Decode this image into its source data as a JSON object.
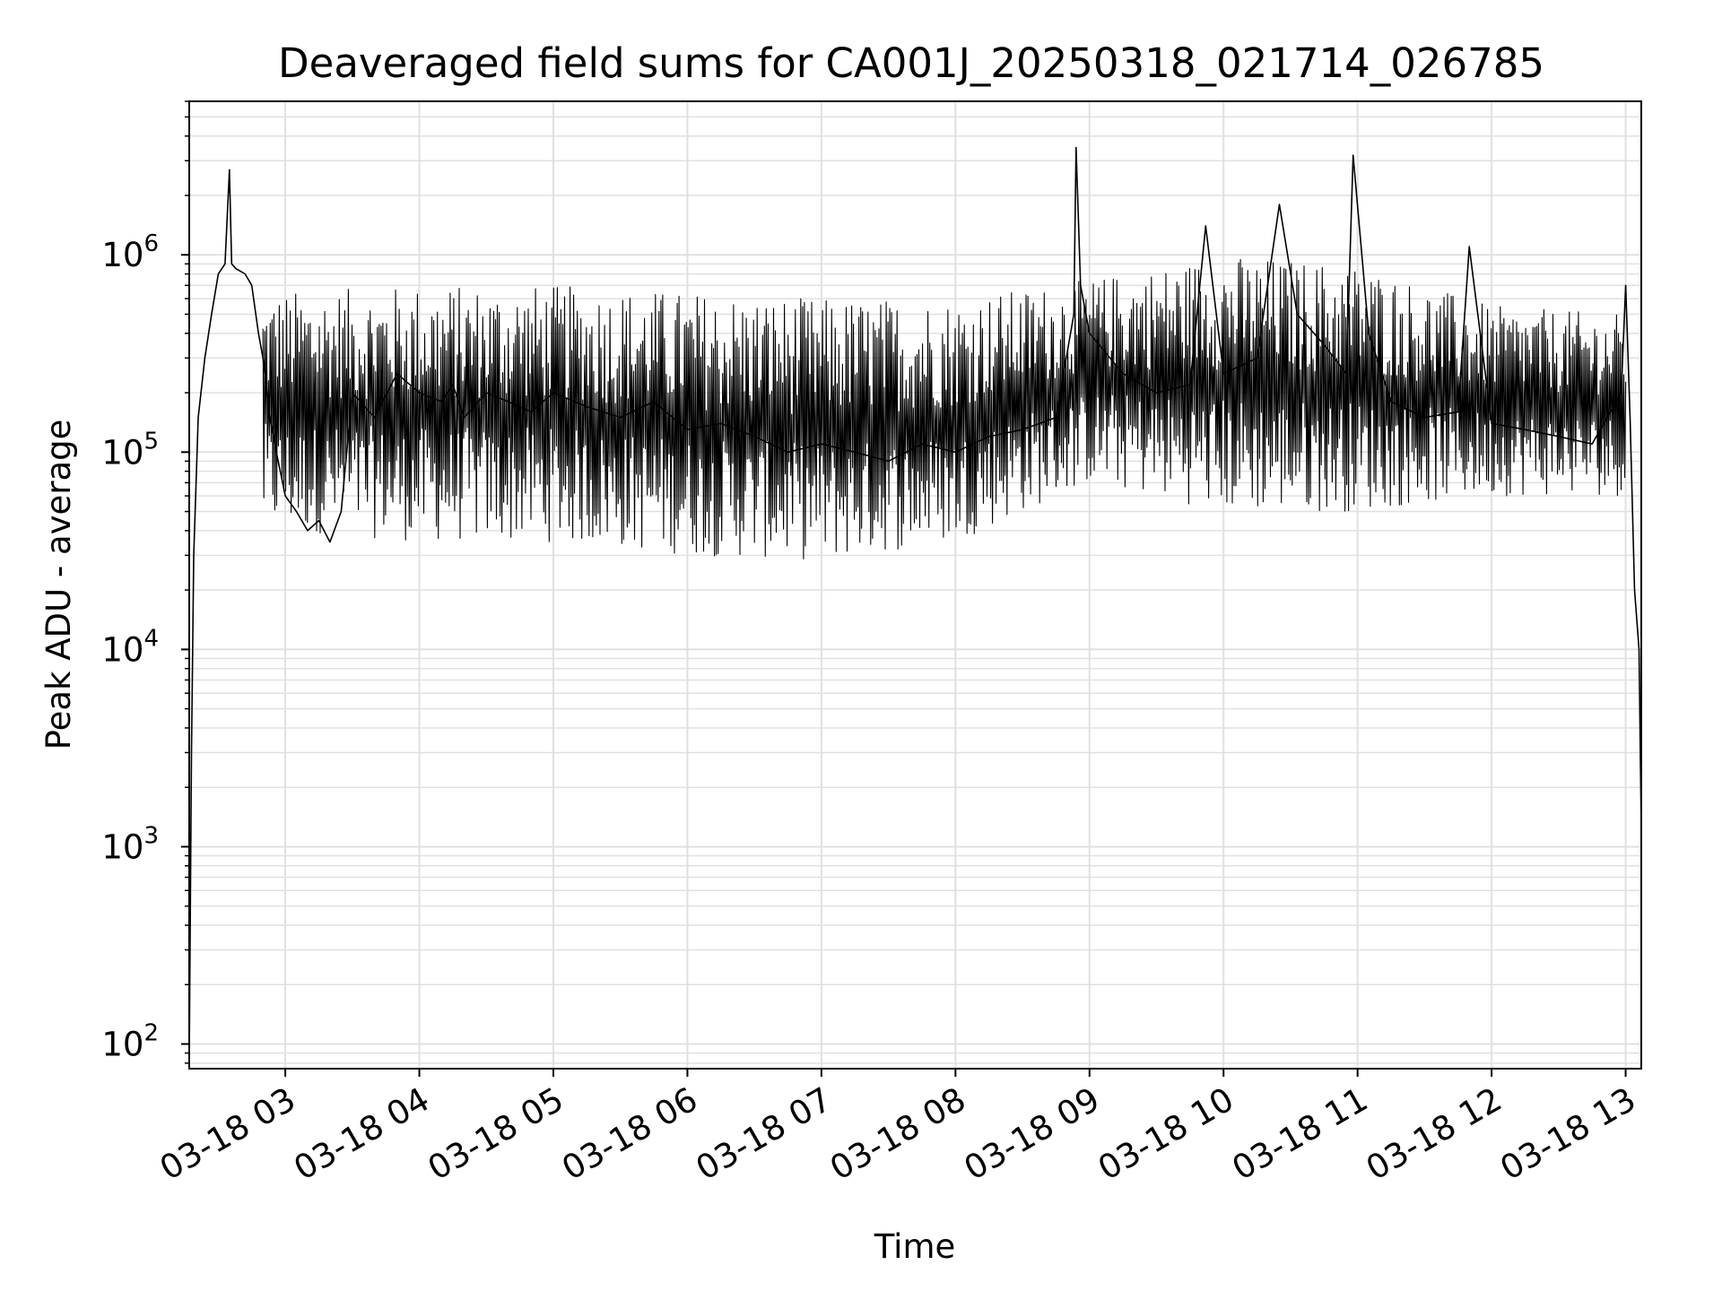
{
  "chart_data": {
    "type": "line",
    "title": "Deaveraged field sums for CA001J_20250318_021714_026785",
    "xlabel": "Time",
    "ylabel": "Peak ADU - average",
    "yscale": "log",
    "ylim": [
      75,
      6000000
    ],
    "xlim": [
      "2025-03-18 02:17",
      "2025-03-18 13:07"
    ],
    "grid": true,
    "grid_which": "both",
    "line_color": "#000000",
    "grid_color": "#e0e0e0",
    "x_ticks": [
      {
        "value": "2025-03-18 03:00",
        "label": "03-18 03"
      },
      {
        "value": "2025-03-18 04:00",
        "label": "03-18 04"
      },
      {
        "value": "2025-03-18 05:00",
        "label": "03-18 05"
      },
      {
        "value": "2025-03-18 06:00",
        "label": "03-18 06"
      },
      {
        "value": "2025-03-18 07:00",
        "label": "03-18 07"
      },
      {
        "value": "2025-03-18 08:00",
        "label": "03-18 08"
      },
      {
        "value": "2025-03-18 09:00",
        "label": "03-18 09"
      },
      {
        "value": "2025-03-18 10:00",
        "label": "03-18 10"
      },
      {
        "value": "2025-03-18 11:00",
        "label": "03-18 11"
      },
      {
        "value": "2025-03-18 12:00",
        "label": "03-18 12"
      },
      {
        "value": "2025-03-18 13:00",
        "label": "03-18 13"
      }
    ],
    "y_ticks": [
      {
        "value": 100,
        "base": "10",
        "exp": "2"
      },
      {
        "value": 1000,
        "base": "10",
        "exp": "3"
      },
      {
        "value": 10000,
        "base": "10",
        "exp": "4"
      },
      {
        "value": 100000,
        "base": "10",
        "exp": "5"
      },
      {
        "value": 1000000,
        "base": "10",
        "exp": "6"
      }
    ],
    "series": [
      {
        "x": [
          "2025-03-18 02:17",
          "2025-03-18 02:18",
          "2025-03-18 02:19",
          "2025-03-18 02:21",
          "2025-03-18 02:24",
          "2025-03-18 02:27",
          "2025-03-18 02:30",
          "2025-03-18 02:33",
          "2025-03-18 02:35",
          "2025-03-18 02:36",
          "2025-03-18 02:38",
          "2025-03-18 02:42",
          "2025-03-18 02:45",
          "2025-03-18 02:48",
          "2025-03-18 02:50",
          "2025-03-18 02:53",
          "2025-03-18 02:56",
          "2025-03-18 03:00",
          "2025-03-18 03:05",
          "2025-03-18 03:10",
          "2025-03-18 03:15",
          "2025-03-18 03:20",
          "2025-03-18 03:25",
          "2025-03-18 03:30",
          "2025-03-18 03:40",
          "2025-03-18 03:50",
          "2025-03-18 04:00",
          "2025-03-18 04:10",
          "2025-03-18 04:15",
          "2025-03-18 04:20",
          "2025-03-18 04:30",
          "2025-03-18 04:40",
          "2025-03-18 04:50",
          "2025-03-18 05:00",
          "2025-03-18 05:15",
          "2025-03-18 05:30",
          "2025-03-18 05:45",
          "2025-03-18 06:00",
          "2025-03-18 06:15",
          "2025-03-18 06:30",
          "2025-03-18 06:45",
          "2025-03-18 07:00",
          "2025-03-18 07:15",
          "2025-03-18 07:30",
          "2025-03-18 07:45",
          "2025-03-18 08:00",
          "2025-03-18 08:15",
          "2025-03-18 08:30",
          "2025-03-18 08:45",
          "2025-03-18 08:53",
          "2025-03-18 08:54",
          "2025-03-18 08:56",
          "2025-03-18 09:00",
          "2025-03-18 09:15",
          "2025-03-18 09:30",
          "2025-03-18 09:45",
          "2025-03-18 09:52",
          "2025-03-18 10:00",
          "2025-03-18 10:15",
          "2025-03-18 10:25",
          "2025-03-18 10:33",
          "2025-03-18 10:45",
          "2025-03-18 10:55",
          "2025-03-18 10:58",
          "2025-03-18 11:05",
          "2025-03-18 11:15",
          "2025-03-18 11:30",
          "2025-03-18 11:45",
          "2025-03-18 11:50",
          "2025-03-18 12:00",
          "2025-03-18 12:15",
          "2025-03-18 12:30",
          "2025-03-18 12:45",
          "2025-03-18 12:58",
          "2025-03-18 13:00",
          "2025-03-18 13:02",
          "2025-03-18 13:04",
          "2025-03-18 13:06",
          "2025-03-18 13:07"
        ],
        "y": [
          80,
          3000,
          30000,
          150000,
          300000,
          500000,
          800000,
          900000,
          2700000,
          900000,
          850000,
          800000,
          700000,
          400000,
          300000,
          150000,
          100000,
          60000,
          50000,
          40000,
          45000,
          35000,
          50000,
          200000,
          150000,
          250000,
          200000,
          180000,
          220000,
          150000,
          200000,
          180000,
          160000,
          200000,
          170000,
          150000,
          180000,
          130000,
          140000,
          120000,
          100000,
          110000,
          100000,
          90000,
          110000,
          100000,
          120000,
          130000,
          150000,
          500000,
          3500000,
          700000,
          400000,
          250000,
          200000,
          220000,
          1400000,
          250000,
          300000,
          1800000,
          500000,
          350000,
          250000,
          3200000,
          400000,
          180000,
          150000,
          160000,
          1100000,
          140000,
          130000,
          120000,
          110000,
          200000,
          700000,
          150000,
          20000,
          10000,
          1200
        ]
      }
    ],
    "envelope": {
      "x": [
        "2025-03-18 03:00",
        "2025-03-18 04:00",
        "2025-03-18 05:00",
        "2025-03-18 06:00",
        "2025-03-18 07:00",
        "2025-03-18 08:00",
        "2025-03-18 09:00",
        "2025-03-18 10:00",
        "2025-03-18 11:00",
        "2025-03-18 12:00",
        "2025-03-18 13:00"
      ],
      "upper": [
        650000,
        700000,
        700000,
        650000,
        600000,
        600000,
        750000,
        1000000,
        900000,
        550000,
        500000
      ],
      "lower": [
        40000,
        35000,
        35000,
        30000,
        28000,
        35000,
        70000,
        50000,
        50000,
        60000,
        60000
      ]
    }
  }
}
